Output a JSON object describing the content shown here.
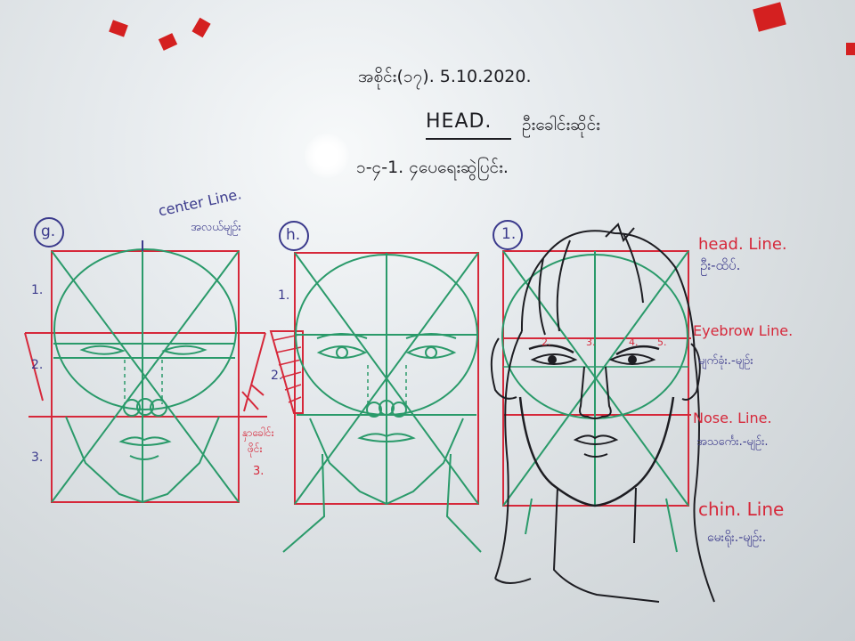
{
  "header": {
    "date_line": "အစိုင်း(၁၇). 5.10.2020.",
    "title_en": "HEAD.",
    "title_my": "ဦးခေါင်းဆိုင်း",
    "subtitle": "၁-၄-1. ၄ပေရေးဆွဲပြင်း."
  },
  "diagram_g": {
    "label": "g.",
    "center_line_en": "center Line.",
    "center_line_my": "အလယ်မျဉ်း",
    "row1": "1.",
    "row2": "2.",
    "row3": "3.",
    "side_note_1": "နှာခေါင်း",
    "side_note_2": "ဖိုင်း",
    "side_note_3": "3."
  },
  "diagram_h": {
    "label": "h.",
    "row1": "1.",
    "row2": "2."
  },
  "diagram_i": {
    "label": "1.",
    "eye_marks": [
      "2.",
      "3.",
      "4.",
      "5."
    ]
  },
  "line_labels": {
    "head_en": "head. Line.",
    "head_my": "ဦး-ထိပ်.",
    "eyebrow_en": "Eyebrow Line.",
    "eyebrow_my": "မျက်ခုံး.-မျဉ်း",
    "nose_en": "Nose. Line.",
    "nose_my": "အသင်္ကေး.-မျဉ်း.",
    "chin_en": "chin. Line",
    "chin_my": "မေးရိုး.-မျဉ်း."
  },
  "colors": {
    "red": "#d6283a",
    "green": "#2a9a6a",
    "navy": "#3b3a8c",
    "black": "#1d1d22",
    "magnet": "#d42020"
  }
}
